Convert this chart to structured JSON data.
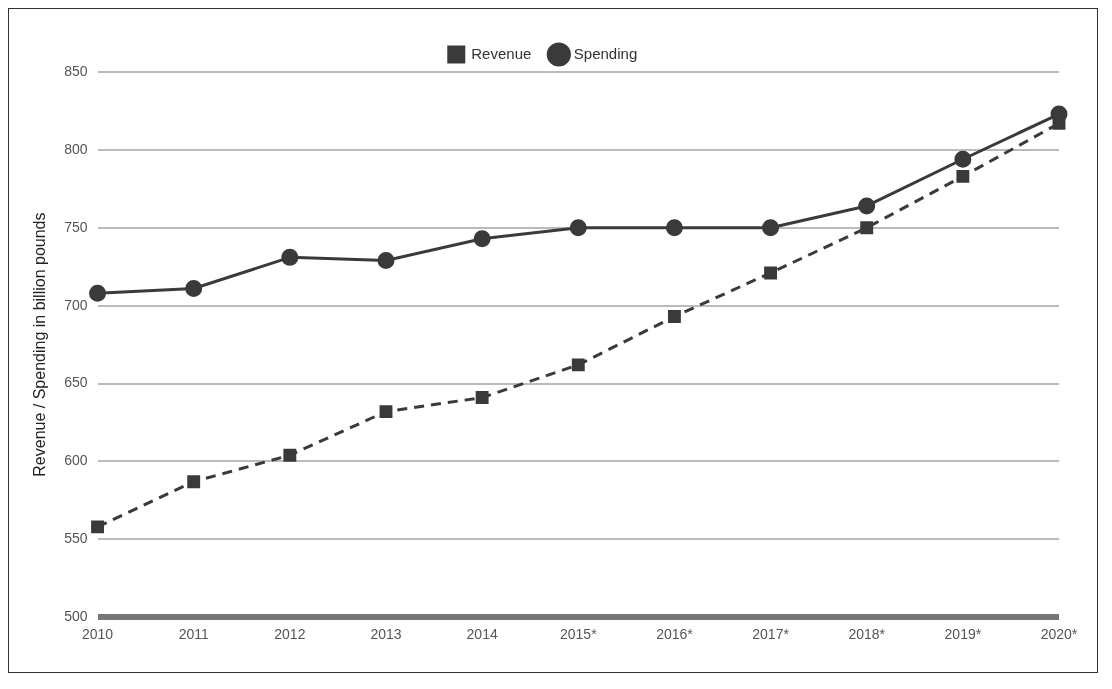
{
  "chart_data": {
    "type": "line",
    "ylabel": "Revenue / Spending in billion pounds",
    "categories": [
      "2010",
      "2011",
      "2012",
      "2013",
      "2014",
      "2015*",
      "2016*",
      "2017*",
      "2018*",
      "2019*",
      "2020*"
    ],
    "series": [
      {
        "name": "Revenue",
        "color": "#3a3a3a",
        "marker": "square",
        "line_style": "dashed",
        "values": [
          558,
          587,
          604,
          632,
          641,
          662,
          693,
          721,
          750,
          783,
          817
        ]
      },
      {
        "name": "Spending",
        "color": "#3a3a3a",
        "marker": "circle",
        "line_style": "solid",
        "values": [
          708,
          711,
          731,
          729,
          743,
          750,
          750,
          750,
          764,
          794,
          823
        ]
      }
    ],
    "ylim": [
      500,
      850
    ],
    "yticks": [
      500,
      550,
      600,
      650,
      700,
      750,
      800,
      850
    ],
    "grid": "y",
    "legend": "top"
  }
}
